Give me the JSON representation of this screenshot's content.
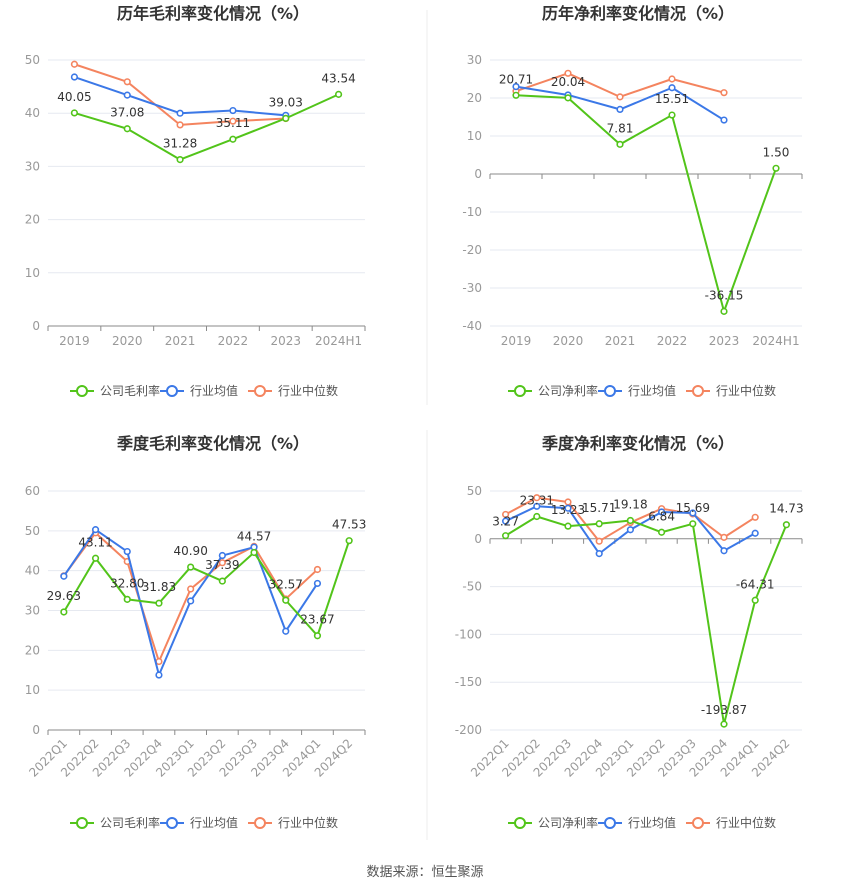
{
  "footer": {
    "source": "数据来源：恒生聚源"
  },
  "colors": {
    "company": "#52c41a",
    "industry_avg": "#3b78e7",
    "industry_median": "#f4845f",
    "grid": "#e6e9f0",
    "axis": "#8a8a8a",
    "tick_text": "#999999",
    "label_text": "#333333",
    "title_text": "#333333",
    "divider": "#eeeeee"
  },
  "chart_data": [
    {
      "type": "line",
      "title": "历年毛利率变化情况（%）",
      "categories": [
        "2019",
        "2020",
        "2021",
        "2022",
        "2023",
        "2024H1"
      ],
      "ylim": [
        0,
        50
      ],
      "yticks": [
        0,
        10,
        20,
        30,
        40,
        50
      ],
      "grid": true,
      "legend": "bottom",
      "rotate_x": false,
      "series": [
        {
          "name": "公司毛利率",
          "key": "company",
          "values": [
            40.05,
            37.08,
            31.28,
            35.11,
            39.03,
            43.54
          ],
          "labels": [
            "40.05",
            "37.08",
            "31.28",
            "35.11",
            "39.03",
            "43.54"
          ]
        },
        {
          "name": "行业均值",
          "key": "industry_avg",
          "values": [
            46.8,
            43.4,
            40.0,
            40.5,
            39.6,
            null
          ]
        },
        {
          "name": "行业中位数",
          "key": "industry_median",
          "values": [
            49.2,
            45.9,
            37.8,
            38.5,
            39.0,
            null
          ]
        }
      ]
    },
    {
      "type": "line",
      "title": "历年净利率变化情况（%）",
      "categories": [
        "2019",
        "2020",
        "2021",
        "2022",
        "2023",
        "2024H1"
      ],
      "ylim": [
        -40,
        30
      ],
      "yticks": [
        -40,
        -30,
        -20,
        -10,
        0,
        10,
        20,
        30
      ],
      "grid": true,
      "legend": "bottom",
      "rotate_x": false,
      "series": [
        {
          "name": "公司净利率",
          "key": "company",
          "values": [
            20.71,
            20.04,
            7.81,
            15.51,
            -36.15,
            1.5
          ],
          "labels": [
            "20.71",
            "20.04",
            "7.81",
            "15.51",
            "-36.15",
            "1.50"
          ]
        },
        {
          "name": "行业均值",
          "key": "industry_avg",
          "values": [
            23.0,
            20.8,
            17.0,
            22.7,
            14.2,
            null
          ]
        },
        {
          "name": "行业中位数",
          "key": "industry_median",
          "values": [
            21.8,
            26.5,
            20.3,
            25.0,
            21.4,
            null
          ]
        }
      ]
    },
    {
      "type": "line",
      "title": "季度毛利率变化情况（%）",
      "categories": [
        "2022Q1",
        "2022Q2",
        "2022Q3",
        "2022Q4",
        "2023Q1",
        "2023Q2",
        "2023Q3",
        "2023Q4",
        "2024Q1",
        "2024Q2"
      ],
      "ylim": [
        0,
        60
      ],
      "yticks": [
        0,
        10,
        20,
        30,
        40,
        50,
        60
      ],
      "grid": true,
      "legend": "bottom",
      "rotate_x": true,
      "series": [
        {
          "name": "公司毛利率",
          "key": "company",
          "values": [
            29.63,
            43.11,
            32.8,
            31.83,
            40.9,
            37.39,
            44.57,
            32.57,
            23.67,
            47.53
          ],
          "labels": [
            "29.63",
            "43.11",
            "32.80",
            "31.83",
            "40.90",
            "37.39",
            "44.57",
            "32.57",
            "23.67",
            "47.53"
          ]
        },
        {
          "name": "行业均值",
          "key": "industry_avg",
          "values": [
            38.6,
            50.3,
            44.8,
            13.8,
            32.4,
            43.8,
            45.9,
            24.8,
            36.8,
            null
          ]
        },
        {
          "name": "行业中位数",
          "key": "industry_median",
          "values": [
            38.7,
            49.5,
            42.3,
            17.2,
            35.4,
            42.0,
            46.1,
            32.9,
            40.3,
            null
          ]
        }
      ]
    },
    {
      "type": "line",
      "title": "季度净利率变化情况（%）",
      "categories": [
        "2022Q1",
        "2022Q2",
        "2022Q3",
        "2022Q4",
        "2023Q1",
        "2023Q2",
        "2023Q3",
        "2023Q4",
        "2024Q1",
        "2024Q2"
      ],
      "ylim": [
        -200,
        50
      ],
      "yticks": [
        -200,
        -150,
        -100,
        -50,
        0,
        50
      ],
      "grid": true,
      "legend": "bottom",
      "rotate_x": true,
      "series": [
        {
          "name": "公司净利率",
          "key": "company",
          "values": [
            3.27,
            23.31,
            13.23,
            15.71,
            19.18,
            6.84,
            15.69,
            -193.87,
            -64.31,
            14.73
          ],
          "labels": [
            "3.27",
            "23.31",
            "13.23",
            "15.71",
            "19.18",
            "6.84",
            "15.69",
            "-193.87",
            "-64.31",
            "14.73"
          ]
        },
        {
          "name": "行业均值",
          "key": "industry_avg",
          "values": [
            18.5,
            34.0,
            32.0,
            -15.5,
            9.5,
            28.0,
            27.0,
            -12.5,
            5.8,
            null
          ]
        },
        {
          "name": "行业中位数",
          "key": "industry_median",
          "values": [
            25.5,
            43.0,
            38.5,
            -2.5,
            17.0,
            31.5,
            26.0,
            1.5,
            22.5,
            null
          ]
        }
      ]
    }
  ]
}
